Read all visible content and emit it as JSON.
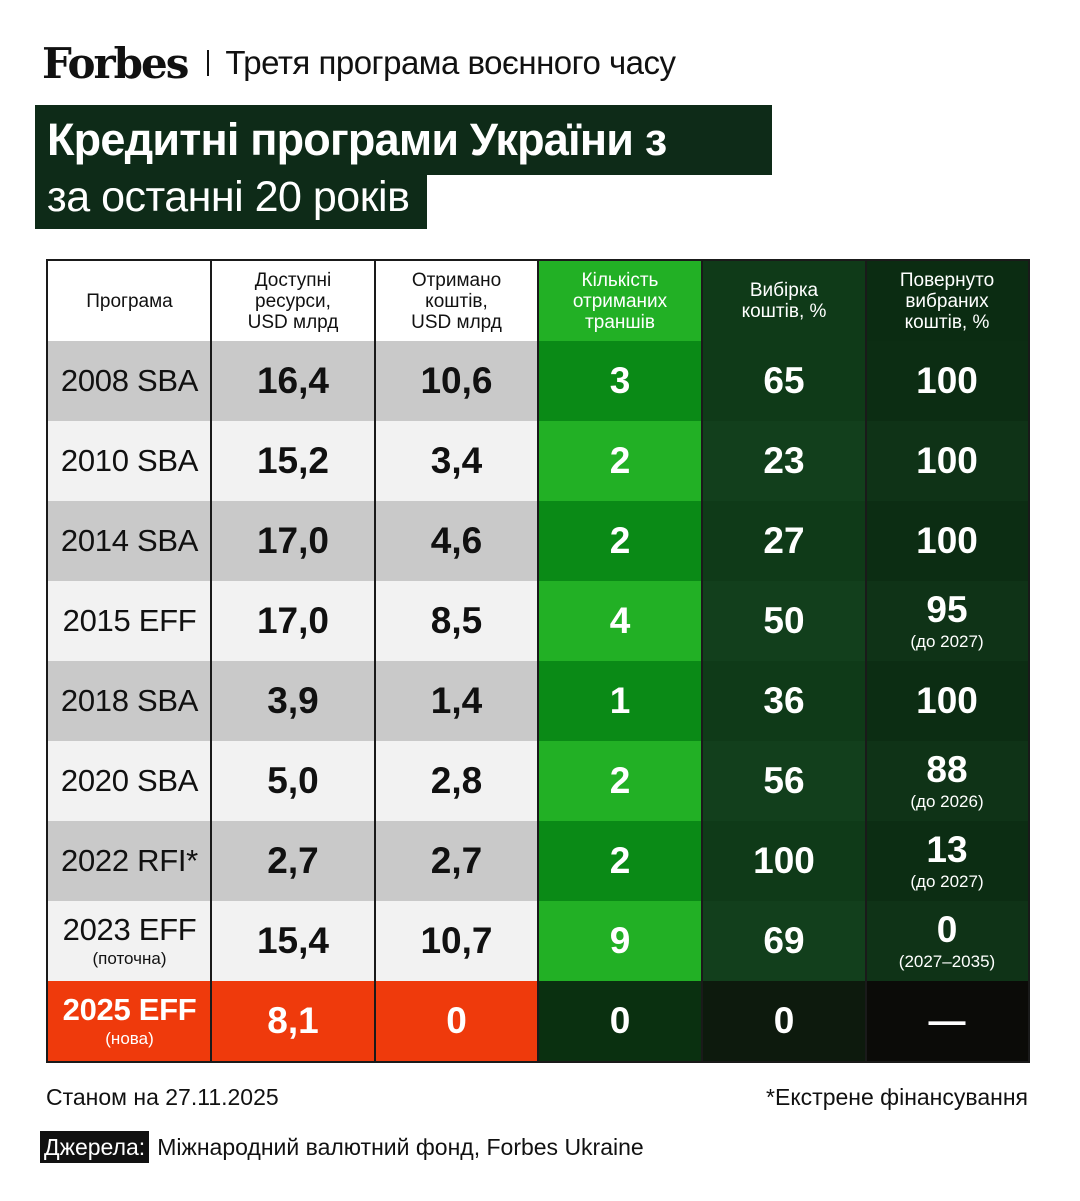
{
  "header": {
    "logo": "Forbes",
    "kicker": "Третя програма воєнного часу"
  },
  "title": {
    "line1": "Кредитні програми України з МВФ",
    "line2": "за останні 20 років"
  },
  "colors": {
    "dark_green": "#0e2b18",
    "green_col": "#22b025",
    "red_row": "#ef3a0c",
    "row_gray": "#c9c9c9",
    "row_light": "#f2f2f2"
  },
  "table": {
    "columns": [
      "Програма",
      "Доступні\nресурси,\nUSD млрд",
      "Отримано\nкоштів,\nUSD млрд",
      "Кількість\nотриманих\nтраншів",
      "Вибірка\nкоштів, %",
      "Повернуто\nвибраних\nкоштів, %"
    ],
    "rows": [
      {
        "program": "2008 SBA",
        "program_note": "",
        "available": "16,4",
        "received": "10,6",
        "tranches": "3",
        "drawdown": "65",
        "repaid": "100",
        "repaid_note": ""
      },
      {
        "program": "2010 SBA",
        "program_note": "",
        "available": "15,2",
        "received": "3,4",
        "tranches": "2",
        "drawdown": "23",
        "repaid": "100",
        "repaid_note": ""
      },
      {
        "program": "2014 SBA",
        "program_note": "",
        "available": "17,0",
        "received": "4,6",
        "tranches": "2",
        "drawdown": "27",
        "repaid": "100",
        "repaid_note": ""
      },
      {
        "program": "2015 EFF",
        "program_note": "",
        "available": "17,0",
        "received": "8,5",
        "tranches": "4",
        "drawdown": "50",
        "repaid": "95",
        "repaid_note": "(до 2027)"
      },
      {
        "program": "2018 SBA",
        "program_note": "",
        "available": "3,9",
        "received": "1,4",
        "tranches": "1",
        "drawdown": "36",
        "repaid": "100",
        "repaid_note": ""
      },
      {
        "program": "2020 SBA",
        "program_note": "",
        "available": "5,0",
        "received": "2,8",
        "tranches": "2",
        "drawdown": "56",
        "repaid": "88",
        "repaid_note": "(до 2026)"
      },
      {
        "program": "2022 RFI*",
        "program_note": "",
        "available": "2,7",
        "received": "2,7",
        "tranches": "2",
        "drawdown": "100",
        "repaid": "13",
        "repaid_note": "(до 2027)"
      },
      {
        "program": "2023 EFF",
        "program_note": "(поточна)",
        "available": "15,4",
        "received": "10,7",
        "tranches": "9",
        "drawdown": "69",
        "repaid": "0",
        "repaid_note": "(2027–2035)"
      },
      {
        "program": "2025 EFF",
        "program_note": "(нова)",
        "available": "8,1",
        "received": "0",
        "tranches": "0",
        "drawdown": "0",
        "repaid": "—",
        "repaid_note": ""
      }
    ]
  },
  "footer": {
    "as_of": "Станом на 27.11.2025",
    "footnote": "*Екстрене фінансування",
    "sources_label": "Джерела:",
    "sources_text": "Міжнародний валютний фонд, Forbes Ukraine"
  }
}
